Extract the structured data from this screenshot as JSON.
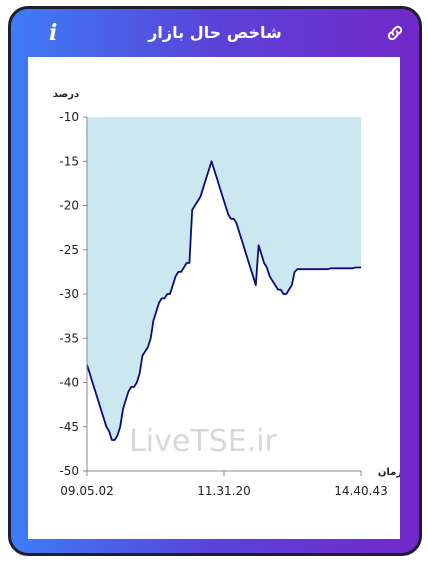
{
  "header": {
    "title": "شاخص حال بازار",
    "info_icon": "info-icon",
    "link_icon": "link-icon"
  },
  "watermark": "LiveTSE.ir",
  "colors": {
    "line": "#0b0b7a",
    "fill": "#cbe8f0",
    "gradient_start": "#3d7cf4",
    "gradient_end": "#7228c9"
  },
  "chart_data": {
    "type": "line",
    "ylabel": "درصد",
    "xlabel": "زمان",
    "ylim": [
      -50,
      -10
    ],
    "y_ticks": [
      -10,
      -15,
      -20,
      -25,
      -30,
      -35,
      -40,
      -45,
      -50
    ],
    "x_ticks": [
      "09.05.02",
      "11.31.20",
      "14.40.43"
    ],
    "series": [
      {
        "values": [
          -38,
          -39,
          -40,
          -41,
          -42,
          -43,
          -44,
          -45,
          -45.5,
          -46.5,
          -46.5,
          -46,
          -45,
          -43,
          -42,
          -41,
          -40.5,
          -40.5,
          -40,
          -39,
          -37,
          -36.5,
          -36,
          -35,
          -33,
          -32,
          -31,
          -30.5,
          -30.5,
          -30,
          -30,
          -29,
          -28,
          -27.5,
          -27.5,
          -27,
          -26.5,
          -26.5,
          -20.5,
          -20,
          -19.5,
          -19,
          -18,
          -17,
          -16,
          -15,
          -16,
          -17,
          -18,
          -19,
          -20,
          -21,
          -21.5,
          -21.5,
          -22,
          -23,
          -24,
          -25,
          -26,
          -27,
          -28,
          -29,
          -24.5,
          -25.5,
          -26.5,
          -27,
          -28,
          -28.5,
          -29,
          -29.5,
          -29.5,
          -30,
          -30,
          -29.5,
          -29,
          -27.5,
          -27.2,
          -27.2,
          -27.2,
          -27.2,
          -27.2,
          -27.2,
          -27.2,
          -27.2,
          -27.2,
          -27.2,
          -27.2,
          -27.2,
          -27.1,
          -27.1,
          -27.1,
          -27.1,
          -27.1,
          -27.1,
          -27.1,
          -27.1,
          -27.1,
          -27.0,
          -27.0,
          -27.0
        ]
      }
    ]
  }
}
